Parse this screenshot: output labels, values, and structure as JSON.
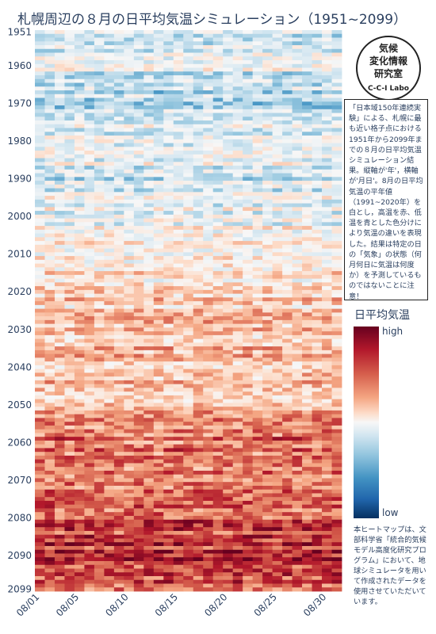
{
  "chart_data": {
    "type": "heatmap",
    "title": "札幌周辺の８月の日平均気温シミュレーション（1951~2099）",
    "x_tick_labels": [
      "08/01",
      "08/05",
      "08/10",
      "08/15",
      "08/20",
      "08/25",
      "08/30"
    ],
    "x_tick_days": [
      1,
      5,
      10,
      15,
      20,
      25,
      30
    ],
    "x_range": [
      1,
      31
    ],
    "y_tick_labels": [
      "1951",
      "1960",
      "1970",
      "1980",
      "1990",
      "2000",
      "2010",
      "2020",
      "2030",
      "2040",
      "2050",
      "2060",
      "2070",
      "2080",
      "2090",
      "2099"
    ],
    "y_tick_years": [
      1951,
      1960,
      1970,
      1980,
      1990,
      2000,
      2010,
      2020,
      2030,
      2040,
      2050,
      2060,
      2070,
      2080,
      2090,
      2099
    ],
    "y_range": [
      1951,
      2099
    ],
    "y_axis_reversed": true,
    "colorbar": {
      "title": "日平均気温",
      "high_label": "high",
      "low_label": "low",
      "colorscale": [
        "#053061",
        "#2166ac",
        "#4393c3",
        "#92c5de",
        "#d1e5f0",
        "#f7f7f7",
        "#fddbc7",
        "#f4a582",
        "#d6604d",
        "#b2182b",
        "#67001f"
      ]
    },
    "anomaly_trend_by_year": [
      {
        "year": 1951,
        "mean": -0.15
      },
      {
        "year": 1960,
        "mean": -0.1
      },
      {
        "year": 1970,
        "mean": -0.3
      },
      {
        "year": 1980,
        "mean": 0.0
      },
      {
        "year": 1990,
        "mean": -0.15
      },
      {
        "year": 2000,
        "mean": -0.05
      },
      {
        "year": 2010,
        "mean": 0.1
      },
      {
        "year": 2020,
        "mean": 0.18
      },
      {
        "year": 2030,
        "mean": 0.25
      },
      {
        "year": 2040,
        "mean": 0.3
      },
      {
        "year": 2050,
        "mean": 0.3
      },
      {
        "year": 2060,
        "mean": 0.55
      },
      {
        "year": 2070,
        "mean": 0.55
      },
      {
        "year": 2080,
        "mean": 0.6
      },
      {
        "year": 2090,
        "mean": 0.75
      },
      {
        "year": 2099,
        "mean": 0.65
      }
    ]
  },
  "logo": {
    "row1": "気候",
    "row2": "変化情報",
    "row3": "研究室",
    "sub": "C-C-I Labo"
  },
  "note_text": "「日本域150年連続実験」による、札幌に最も近い格子点における1951年から2099年までの８月の日平均気温シミュレーション結果。縦軸が'年'，横軸が'月日'。8月の日平均気温の平年値（1991~2020年）を白とし，高温を赤、低温を青とした色分けにより気温の違いを表現した。結果は特定の日の「気象」の状態（何月何日に気温は何度か）を予測しているものではないことに注意！",
  "credit_text": "本ヒートマップは、文部科学省「統合的気候モデル高度化研究プログラム」において、地球シミュレータを用いて作成されたデータを使用させていただいています。"
}
